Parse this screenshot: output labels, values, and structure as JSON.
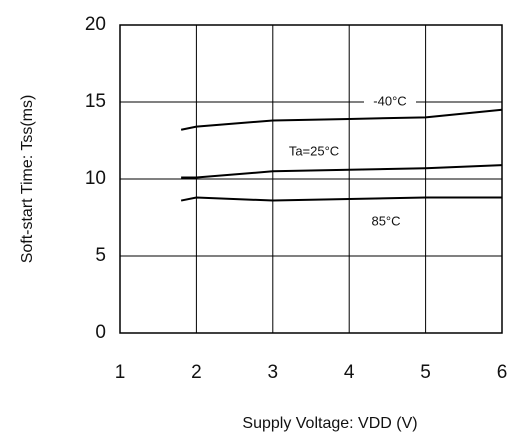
{
  "chart_data": {
    "type": "line",
    "xlabel": "Supply Voltage: VDD (V)",
    "ylabel": "Soft-start Time: Tss(ms)",
    "x": [
      1.8,
      2,
      3,
      4,
      5,
      6
    ],
    "series": [
      {
        "name": "-40°C",
        "color": "#000000",
        "values": [
          13.2,
          13.4,
          13.8,
          13.9,
          14.0,
          14.5
        ]
      },
      {
        "name": "Ta=25°C",
        "color": "#000000",
        "values": [
          10.1,
          10.1,
          10.5,
          10.6,
          10.7,
          10.9
        ]
      },
      {
        "name": "85°C",
        "color": "#000000",
        "values": [
          8.6,
          8.8,
          8.6,
          8.7,
          8.8,
          8.8
        ]
      }
    ],
    "xlim": [
      1,
      6
    ],
    "xticks": [
      1,
      2,
      3,
      4,
      5,
      6
    ],
    "ylim": [
      0,
      20
    ],
    "yticks": [
      0,
      5,
      10,
      15,
      20
    ],
    "grid": true
  }
}
